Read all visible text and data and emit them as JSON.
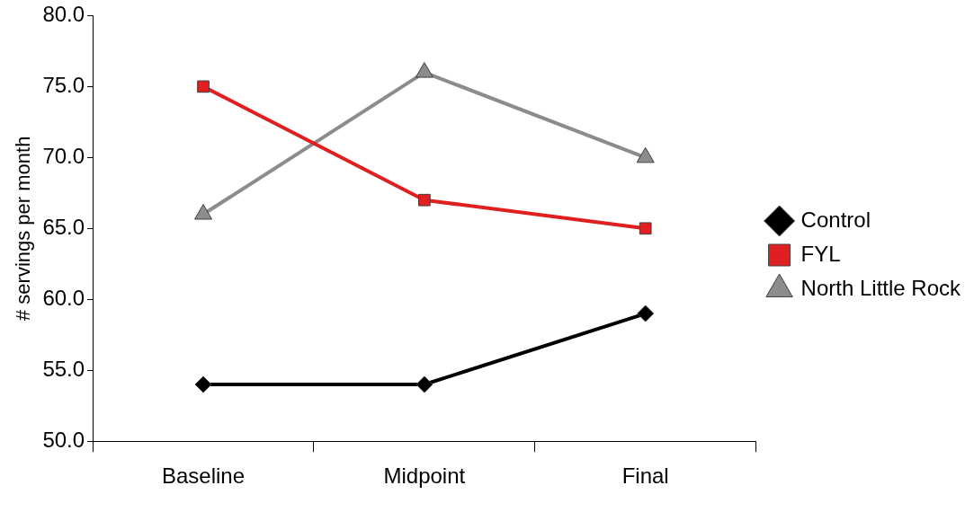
{
  "chart_data": {
    "type": "line",
    "ylabel": "# servings per month",
    "categories": [
      "Baseline",
      "Midpoint",
      "Final"
    ],
    "series": [
      {
        "name": "Control",
        "color": "#000000",
        "marker": "diamond",
        "values": [
          54,
          54,
          59
        ]
      },
      {
        "name": "FYL",
        "color": "#e02020",
        "marker": "square",
        "values": [
          75,
          67,
          65
        ]
      },
      {
        "name": "North Little Rock",
        "color": "#8c8c8c",
        "marker": "triangle",
        "values": [
          66,
          76,
          70
        ]
      }
    ],
    "ylim": [
      50,
      80
    ],
    "yticks": [
      {
        "value": 50,
        "label": "50.0"
      },
      {
        "value": 55,
        "label": "55.0"
      },
      {
        "value": 60,
        "label": "60.0"
      },
      {
        "value": 65,
        "label": "65.0"
      },
      {
        "value": 70,
        "label": "70.0"
      },
      {
        "value": 75,
        "label": "75.0"
      },
      {
        "value": 80,
        "label": "80.0"
      }
    ],
    "grid": false,
    "legend": "right",
    "line_style": "solid"
  }
}
